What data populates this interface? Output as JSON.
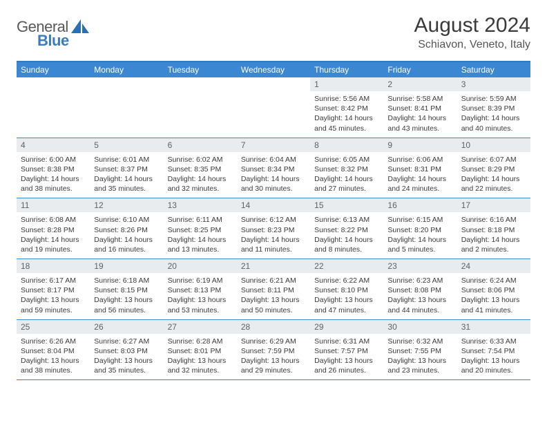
{
  "brand": {
    "name_a": "General",
    "name_b": "Blue"
  },
  "title": "August 2024",
  "location": "Schiavon, Veneto, Italy",
  "colors": {
    "header_bg": "#3b87d1",
    "header_text": "#ffffff",
    "daynum_bg": "#e9ecef",
    "divider": "#3b87d1",
    "text": "#3a3a3a",
    "title": "#3a3a3a",
    "subtitle": "#555555",
    "logo_gray": "#57585a",
    "logo_blue": "#3b7bbf"
  },
  "typography": {
    "title_size_pt": 22,
    "subtitle_size_pt": 12,
    "body_size_pt": 8,
    "dayheader_size_pt": 9
  },
  "day_names": [
    "Sunday",
    "Monday",
    "Tuesday",
    "Wednesday",
    "Thursday",
    "Friday",
    "Saturday"
  ],
  "weeks": [
    [
      {
        "empty": true
      },
      {
        "empty": true
      },
      {
        "empty": true
      },
      {
        "empty": true
      },
      {
        "num": "1",
        "sunrise": "Sunrise: 5:56 AM",
        "sunset": "Sunset: 8:42 PM",
        "daylight": "Daylight: 14 hours and 45 minutes."
      },
      {
        "num": "2",
        "sunrise": "Sunrise: 5:58 AM",
        "sunset": "Sunset: 8:41 PM",
        "daylight": "Daylight: 14 hours and 43 minutes."
      },
      {
        "num": "3",
        "sunrise": "Sunrise: 5:59 AM",
        "sunset": "Sunset: 8:39 PM",
        "daylight": "Daylight: 14 hours and 40 minutes."
      }
    ],
    [
      {
        "num": "4",
        "sunrise": "Sunrise: 6:00 AM",
        "sunset": "Sunset: 8:38 PM",
        "daylight": "Daylight: 14 hours and 38 minutes."
      },
      {
        "num": "5",
        "sunrise": "Sunrise: 6:01 AM",
        "sunset": "Sunset: 8:37 PM",
        "daylight": "Daylight: 14 hours and 35 minutes."
      },
      {
        "num": "6",
        "sunrise": "Sunrise: 6:02 AM",
        "sunset": "Sunset: 8:35 PM",
        "daylight": "Daylight: 14 hours and 32 minutes."
      },
      {
        "num": "7",
        "sunrise": "Sunrise: 6:04 AM",
        "sunset": "Sunset: 8:34 PM",
        "daylight": "Daylight: 14 hours and 30 minutes."
      },
      {
        "num": "8",
        "sunrise": "Sunrise: 6:05 AM",
        "sunset": "Sunset: 8:32 PM",
        "daylight": "Daylight: 14 hours and 27 minutes."
      },
      {
        "num": "9",
        "sunrise": "Sunrise: 6:06 AM",
        "sunset": "Sunset: 8:31 PM",
        "daylight": "Daylight: 14 hours and 24 minutes."
      },
      {
        "num": "10",
        "sunrise": "Sunrise: 6:07 AM",
        "sunset": "Sunset: 8:29 PM",
        "daylight": "Daylight: 14 hours and 22 minutes."
      }
    ],
    [
      {
        "num": "11",
        "sunrise": "Sunrise: 6:08 AM",
        "sunset": "Sunset: 8:28 PM",
        "daylight": "Daylight: 14 hours and 19 minutes."
      },
      {
        "num": "12",
        "sunrise": "Sunrise: 6:10 AM",
        "sunset": "Sunset: 8:26 PM",
        "daylight": "Daylight: 14 hours and 16 minutes."
      },
      {
        "num": "13",
        "sunrise": "Sunrise: 6:11 AM",
        "sunset": "Sunset: 8:25 PM",
        "daylight": "Daylight: 14 hours and 13 minutes."
      },
      {
        "num": "14",
        "sunrise": "Sunrise: 6:12 AM",
        "sunset": "Sunset: 8:23 PM",
        "daylight": "Daylight: 14 hours and 11 minutes."
      },
      {
        "num": "15",
        "sunrise": "Sunrise: 6:13 AM",
        "sunset": "Sunset: 8:22 PM",
        "daylight": "Daylight: 14 hours and 8 minutes."
      },
      {
        "num": "16",
        "sunrise": "Sunrise: 6:15 AM",
        "sunset": "Sunset: 8:20 PM",
        "daylight": "Daylight: 14 hours and 5 minutes."
      },
      {
        "num": "17",
        "sunrise": "Sunrise: 6:16 AM",
        "sunset": "Sunset: 8:18 PM",
        "daylight": "Daylight: 14 hours and 2 minutes."
      }
    ],
    [
      {
        "num": "18",
        "sunrise": "Sunrise: 6:17 AM",
        "sunset": "Sunset: 8:17 PM",
        "daylight": "Daylight: 13 hours and 59 minutes."
      },
      {
        "num": "19",
        "sunrise": "Sunrise: 6:18 AM",
        "sunset": "Sunset: 8:15 PM",
        "daylight": "Daylight: 13 hours and 56 minutes."
      },
      {
        "num": "20",
        "sunrise": "Sunrise: 6:19 AM",
        "sunset": "Sunset: 8:13 PM",
        "daylight": "Daylight: 13 hours and 53 minutes."
      },
      {
        "num": "21",
        "sunrise": "Sunrise: 6:21 AM",
        "sunset": "Sunset: 8:11 PM",
        "daylight": "Daylight: 13 hours and 50 minutes."
      },
      {
        "num": "22",
        "sunrise": "Sunrise: 6:22 AM",
        "sunset": "Sunset: 8:10 PM",
        "daylight": "Daylight: 13 hours and 47 minutes."
      },
      {
        "num": "23",
        "sunrise": "Sunrise: 6:23 AM",
        "sunset": "Sunset: 8:08 PM",
        "daylight": "Daylight: 13 hours and 44 minutes."
      },
      {
        "num": "24",
        "sunrise": "Sunrise: 6:24 AM",
        "sunset": "Sunset: 8:06 PM",
        "daylight": "Daylight: 13 hours and 41 minutes."
      }
    ],
    [
      {
        "num": "25",
        "sunrise": "Sunrise: 6:26 AM",
        "sunset": "Sunset: 8:04 PM",
        "daylight": "Daylight: 13 hours and 38 minutes."
      },
      {
        "num": "26",
        "sunrise": "Sunrise: 6:27 AM",
        "sunset": "Sunset: 8:03 PM",
        "daylight": "Daylight: 13 hours and 35 minutes."
      },
      {
        "num": "27",
        "sunrise": "Sunrise: 6:28 AM",
        "sunset": "Sunset: 8:01 PM",
        "daylight": "Daylight: 13 hours and 32 minutes."
      },
      {
        "num": "28",
        "sunrise": "Sunrise: 6:29 AM",
        "sunset": "Sunset: 7:59 PM",
        "daylight": "Daylight: 13 hours and 29 minutes."
      },
      {
        "num": "29",
        "sunrise": "Sunrise: 6:31 AM",
        "sunset": "Sunset: 7:57 PM",
        "daylight": "Daylight: 13 hours and 26 minutes."
      },
      {
        "num": "30",
        "sunrise": "Sunrise: 6:32 AM",
        "sunset": "Sunset: 7:55 PM",
        "daylight": "Daylight: 13 hours and 23 minutes."
      },
      {
        "num": "31",
        "sunrise": "Sunrise: 6:33 AM",
        "sunset": "Sunset: 7:54 PM",
        "daylight": "Daylight: 13 hours and 20 minutes."
      }
    ]
  ]
}
